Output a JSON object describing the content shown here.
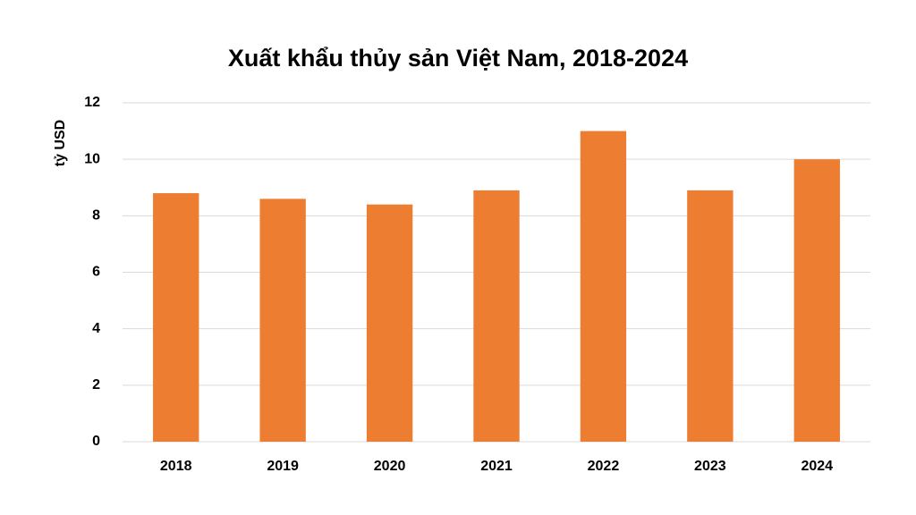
{
  "chart_data": {
    "type": "bar",
    "title": "Xuất khẩu thủy sản Việt Nam, 2018-2024",
    "y_label": "tỷ USD",
    "categories": [
      "2018",
      "2019",
      "2020",
      "2021",
      "2022",
      "2023",
      "2024"
    ],
    "values": [
      8.8,
      8.6,
      8.4,
      8.9,
      11.0,
      8.9,
      10.0
    ],
    "color": "#ed7d31",
    "ylim": [
      0,
      12
    ],
    "yticks": [
      0,
      2,
      4,
      6,
      8,
      10,
      12
    ],
    "grid": true
  }
}
